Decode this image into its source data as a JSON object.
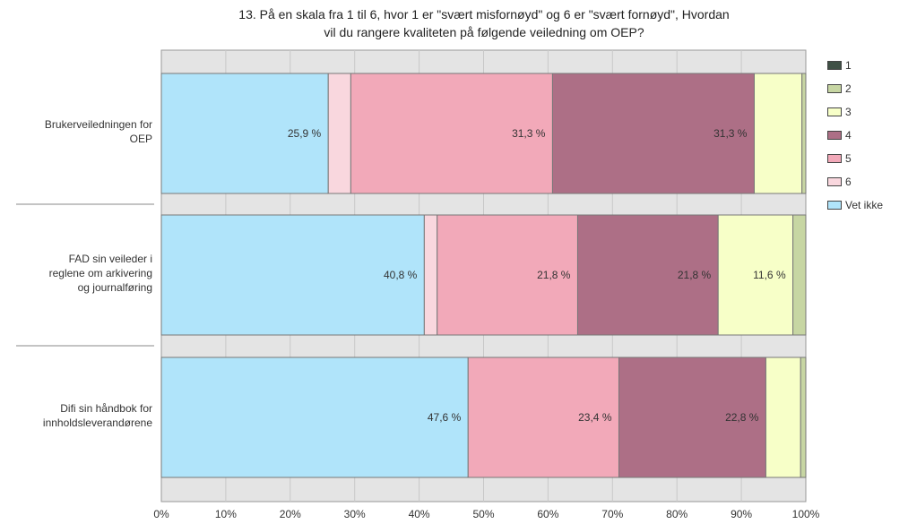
{
  "chart_data": {
    "type": "bar",
    "orientation": "horizontal",
    "stacked": true,
    "title": "13. På en skala fra 1 til 6, hvor 1 er \"svært misfornøyd\" og 6 er \"svært fornøyd\", Hvordan vil du rangere kvaliteten på følgende veiledning om OEP?",
    "title_lines": [
      "13. På en skala fra 1 til 6, hvor 1 er \"svært misfornøyd\" og 6 er \"svært fornøyd\", Hvordan",
      "vil du rangere kvaliteten på følgende veiledning om OEP?"
    ],
    "categories": [
      "Brukerveiledningen for OEP",
      "FAD sin veileder i reglene om arkivering og journalføring",
      "Difi sin håndbok for innholdsleverandørene"
    ],
    "category_lines": [
      [
        "Brukerveiledningen for",
        "OEP"
      ],
      [
        "FAD sin veileder i",
        "reglene om arkivering",
        "og journalføring"
      ],
      [
        "Difi sin håndbok for",
        "innholdsleverandørene"
      ]
    ],
    "series": [
      {
        "name": "Vet ikke",
        "color": "#b0e4fa",
        "values": [
          25.9,
          40.8,
          47.6
        ],
        "labels": [
          "25,9 %",
          "40,8 %",
          "47,6 %"
        ]
      },
      {
        "name": "6",
        "color": "#f9d7de",
        "values": [
          3.5,
          2.0,
          0.0
        ],
        "labels": [
          "",
          "",
          ""
        ]
      },
      {
        "name": "5",
        "color": "#f2a9b9",
        "values": [
          31.3,
          21.8,
          23.4
        ],
        "labels": [
          "31,3 %",
          "21,8 %",
          "23,4 %"
        ]
      },
      {
        "name": "4",
        "color": "#ad6f86",
        "values": [
          31.3,
          21.8,
          22.8
        ],
        "labels": [
          "31,3 %",
          "21,8 %",
          "22,8 %"
        ]
      },
      {
        "name": "3",
        "color": "#f7ffc8",
        "values": [
          7.4,
          11.6,
          5.4
        ],
        "labels": [
          "",
          "11,6 %",
          ""
        ]
      },
      {
        "name": "2",
        "color": "#c7d6a3",
        "values": [
          0.6,
          2.0,
          0.8
        ],
        "labels": [
          "",
          "",
          ""
        ]
      },
      {
        "name": "1",
        "color": "#3f5045",
        "values": [
          0.0,
          0.0,
          0.0
        ],
        "labels": [
          "",
          "",
          ""
        ]
      }
    ],
    "legend_order": [
      "1",
      "2",
      "3",
      "4",
      "5",
      "6",
      "Vet ikke"
    ],
    "xlim": [
      0,
      100
    ],
    "xticks": [
      "0%",
      "10%",
      "20%",
      "30%",
      "40%",
      "50%",
      "60%",
      "70%",
      "80%",
      "90%",
      "100%"
    ],
    "grid": true,
    "legend_position": "right"
  }
}
